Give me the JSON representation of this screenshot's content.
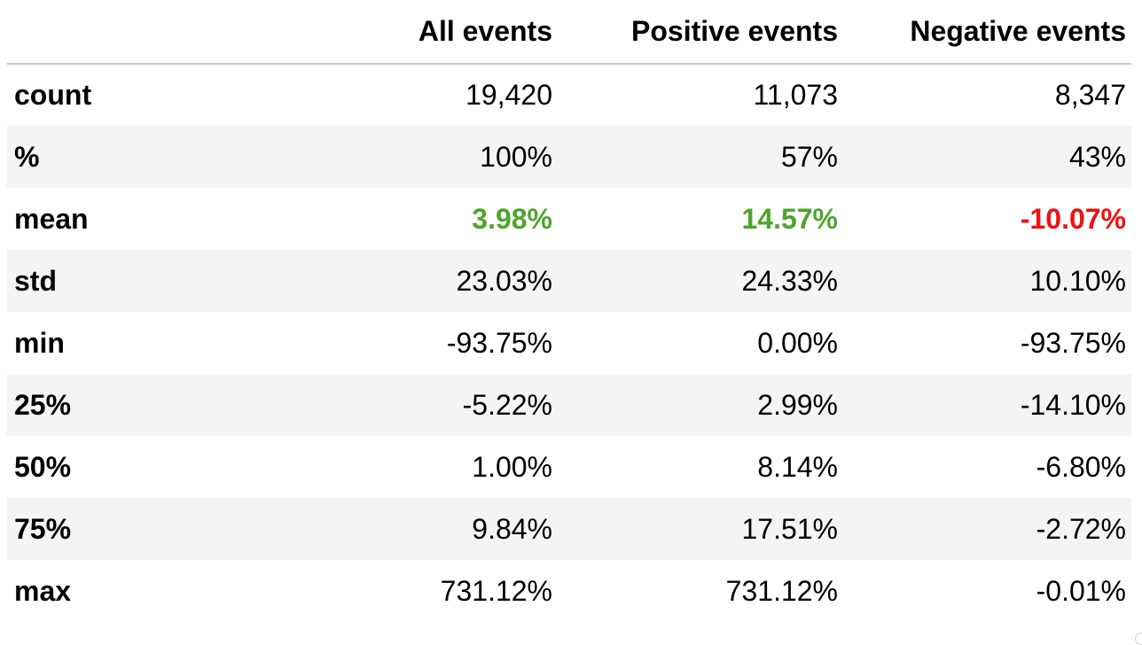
{
  "table": {
    "headers": [
      "",
      "All events",
      "Positive events",
      "Negative events"
    ],
    "rows": [
      {
        "label": "count",
        "values": [
          "19,420",
          "11,073",
          "8,347"
        ],
        "styles": [
          "",
          "",
          ""
        ]
      },
      {
        "label": "%",
        "values": [
          "100%",
          "57%",
          "43%"
        ],
        "styles": [
          "",
          "",
          ""
        ]
      },
      {
        "label": "mean",
        "values": [
          "3.98%",
          "14.57%",
          "-10.07%"
        ],
        "styles": [
          "pos",
          "pos",
          "neg"
        ]
      },
      {
        "label": "std",
        "values": [
          "23.03%",
          "24.33%",
          "10.10%"
        ],
        "styles": [
          "",
          "",
          ""
        ]
      },
      {
        "label": "min",
        "values": [
          "-93.75%",
          "0.00%",
          "-93.75%"
        ],
        "styles": [
          "",
          "",
          ""
        ]
      },
      {
        "label": "25%",
        "values": [
          "-5.22%",
          "2.99%",
          "-14.10%"
        ],
        "styles": [
          "",
          "",
          ""
        ]
      },
      {
        "label": "50%",
        "values": [
          "1.00%",
          "8.14%",
          "-6.80%"
        ],
        "styles": [
          "",
          "",
          ""
        ]
      },
      {
        "label": "75%",
        "values": [
          "9.84%",
          "17.51%",
          "-2.72%"
        ],
        "styles": [
          "",
          "",
          ""
        ]
      },
      {
        "label": "max",
        "values": [
          "731.12%",
          "731.12%",
          "-0.01%"
        ],
        "styles": [
          "",
          "",
          ""
        ]
      }
    ]
  },
  "colors": {
    "positive": "#4ea52c",
    "negative": "#ee1111",
    "stripe": "#f4f4f4",
    "header_rule": "#c8c8c8"
  }
}
